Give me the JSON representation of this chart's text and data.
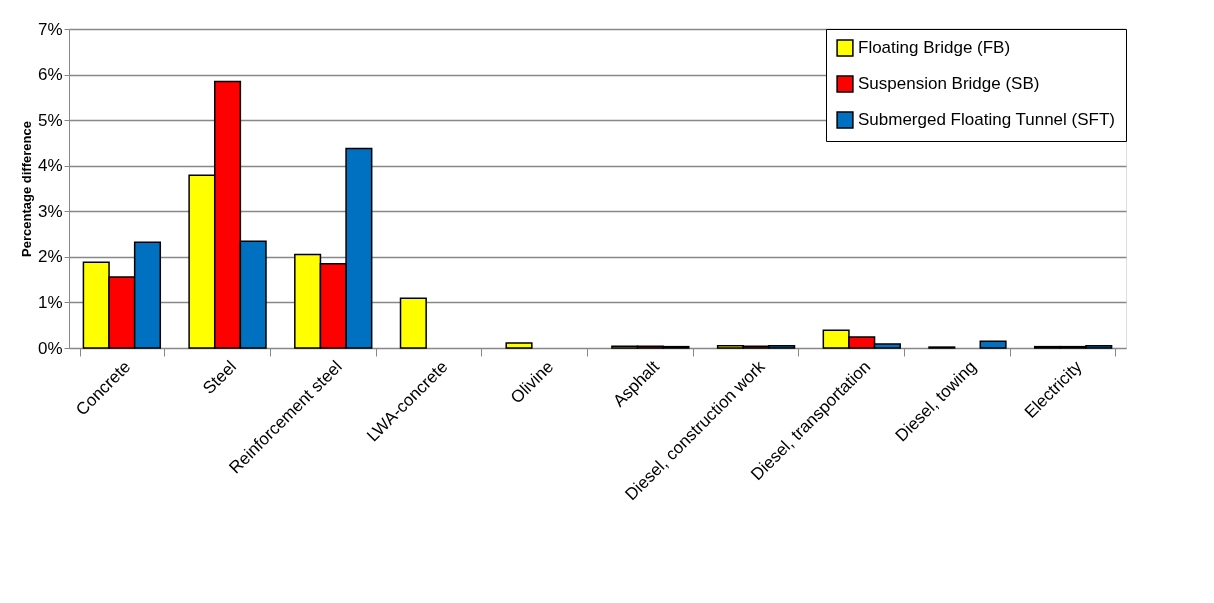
{
  "chart_data": {
    "type": "bar",
    "ylabel": "Percentage difference",
    "categories": [
      "Concrete",
      "Steel",
      "Reinforcement steel",
      "LWA-concrete",
      "Olivine",
      "Asphalt",
      "Diesel, construction work",
      "Diesel, transportation",
      "Diesel, towing",
      "Electricity"
    ],
    "series": [
      {
        "name": "Floating Bridge (FB)",
        "color": "#ffff00",
        "values": [
          1.88,
          3.79,
          2.05,
          1.09,
          0.11,
          0.04,
          0.05,
          0.39,
          0.02,
          0.03
        ]
      },
      {
        "name": "Suspension Bridge (SB)",
        "color": "#ff0000",
        "values": [
          1.56,
          5.85,
          1.85,
          null,
          null,
          0.04,
          0.04,
          0.24,
          null,
          0.03
        ]
      },
      {
        "name": "Submerged Floating Tunnel (SFT)",
        "color": "#0070c0",
        "values": [
          2.32,
          2.34,
          4.38,
          null,
          null,
          0.03,
          0.05,
          0.09,
          0.15,
          0.05
        ]
      }
    ],
    "ylim": [
      0,
      7
    ],
    "yticks": [
      {
        "value": 0,
        "label": "0%"
      },
      {
        "value": 1,
        "label": "1%"
      },
      {
        "value": 2,
        "label": "2%"
      },
      {
        "value": 3,
        "label": "3%"
      },
      {
        "value": 4,
        "label": "4%"
      },
      {
        "value": 5,
        "label": "5%"
      },
      {
        "value": 6,
        "label": "6%"
      },
      {
        "value": 7,
        "label": "7%"
      }
    ],
    "grid": "y",
    "legend": "top right"
  }
}
